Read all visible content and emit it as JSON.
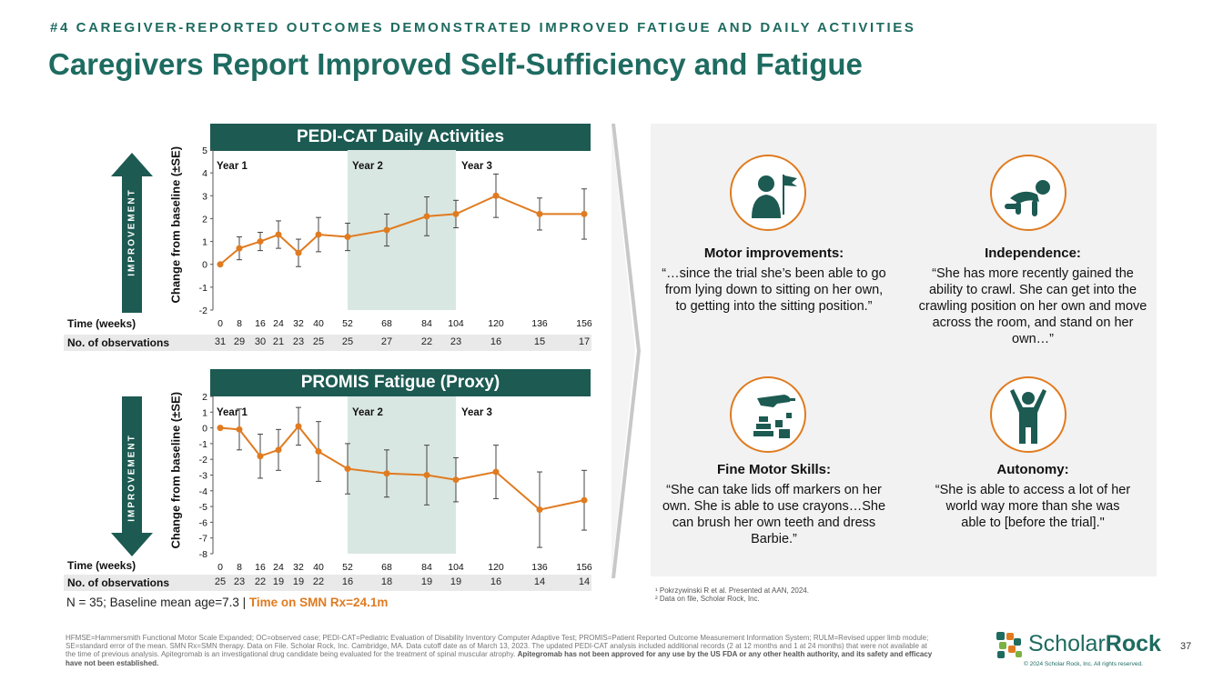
{
  "header": {
    "eyebrow": "#4 CAREGIVER-REPORTED OUTCOMES DEMONSTRATED IMPROVED FATIGUE AND DAILY ACTIVITIES",
    "title": "Caregivers Report Improved Self-Sufficiency and Fatigue"
  },
  "labels": {
    "improvement": "IMPROVEMENT",
    "time_weeks": "Time (weeks)",
    "observations": "No. of observations"
  },
  "chart_data": [
    {
      "type": "line",
      "title": "PEDI-CAT Daily Activities",
      "ylabel": "Change from baseline (±SE)",
      "xlabel": "Time (weeks)",
      "x": [
        0,
        8,
        16,
        24,
        32,
        40,
        52,
        68,
        84,
        104,
        120,
        136,
        156
      ],
      "y": [
        0,
        0.7,
        1.0,
        1.3,
        0.5,
        1.3,
        1.2,
        1.5,
        2.1,
        2.2,
        3.0,
        2.2,
        2.2
      ],
      "se": [
        0,
        0.5,
        0.4,
        0.6,
        0.6,
        0.75,
        0.6,
        0.7,
        0.85,
        0.6,
        0.95,
        0.7,
        1.1
      ],
      "ylim": [
        -2,
        5
      ],
      "yticks": [
        5,
        4,
        3,
        2,
        1,
        0,
        -1,
        -2
      ],
      "observations": [
        31,
        29,
        30,
        21,
        23,
        25,
        25,
        27,
        22,
        23,
        16,
        15,
        17
      ],
      "years": [
        "Year 1",
        "Year 2",
        "Year 3"
      ]
    },
    {
      "type": "line",
      "title": "PROMIS Fatigue (Proxy)",
      "ylabel": "Change from baseline (±SE)",
      "xlabel": "Time (weeks)",
      "x": [
        0,
        8,
        16,
        24,
        32,
        40,
        52,
        68,
        84,
        104,
        120,
        136,
        156
      ],
      "y": [
        0,
        -0.1,
        -1.8,
        -1.4,
        0.1,
        -1.5,
        -2.6,
        -2.9,
        -3.0,
        -3.3,
        -2.8,
        -5.2,
        -4.6
      ],
      "se": [
        0,
        1.3,
        1.4,
        1.3,
        1.2,
        1.9,
        1.6,
        1.5,
        1.9,
        1.4,
        1.7,
        2.4,
        1.9
      ],
      "ylim": [
        -8,
        2
      ],
      "yticks": [
        2,
        1,
        0,
        -1,
        -2,
        -3,
        -4,
        -5,
        -6,
        -7,
        -8
      ],
      "observations": [
        25,
        23,
        22,
        19,
        19,
        22,
        16,
        18,
        19,
        19,
        16,
        14,
        14
      ],
      "years": [
        "Year 1",
        "Year 2",
        "Year 3"
      ]
    }
  ],
  "summary": {
    "n_text": "N = 35; Baseline mean age=7.3  |  ",
    "smn_text": "Time on SMN Rx=24.1m"
  },
  "quotes": [
    {
      "icon": "motor-improvement-icon",
      "heading": "Motor improvements:",
      "text": "“…since the trial she’s been able to go from lying down to sitting on her own, to getting into the sitting position.”"
    },
    {
      "icon": "crawling-baby-icon",
      "heading": "Independence:",
      "text": "“She has more recently gained the ability to crawl. She can get into the crawling position on her own and move across the room, and stand on her own…”"
    },
    {
      "icon": "fine-motor-icon",
      "heading": "Fine Motor Skills:",
      "text": "“She can take lids off markers on her own. She is able to use crayons…She can brush her own teeth and dress Barbie.”"
    },
    {
      "icon": "autonomy-icon",
      "heading": "Autonomy:",
      "text": "“She is able to access a lot of her world way more than she was able to [before the trial].\""
    }
  ],
  "footnotes": {
    "ref1": "¹ Pokrzywinski R et al. Presented at AAN, 2024.",
    "ref2": "² Data on file, Scholar Rock, Inc."
  },
  "footer": {
    "abbreviations": "HFMSE=Hammersmith Functional Motor Scale Expanded; OC=observed case; PEDI-CAT=Pediatric Evaluation of Disability Inventory Computer Adaptive Test; PROMIS=Patient Reported Outcome Measurement Information System; RULM=Revised upper limb module; SE=standard error of the mean. SMN Rx=SMN therapy. Data on File. Scholar Rock, Inc. Cambridge, MA. Data cutoff date as of March 13, 2023. The updated PEDI-CAT analysis included additional records (2 at 12 months and 1 at 24 months) that were not available at the time of previous analysis. Apitegromab is an investigational drug candidate being evaluated for the treatment of spinal muscular atrophy. ",
    "disclaimer": "Apitegromab has not been approved for any use by the US FDA or any other  health authority, and its safety and efficacy have not been established.",
    "logo_part1": "Scholar",
    "logo_part2": "Rock",
    "copyright": "© 2024 Scholar Rock, Inc. All rights reserved.",
    "page_number": "37"
  },
  "colors": {
    "teal": "#1e6b60",
    "dark_teal": "#1c5a52",
    "orange": "#e07b20",
    "year2_shade": "#d9e7e2"
  }
}
